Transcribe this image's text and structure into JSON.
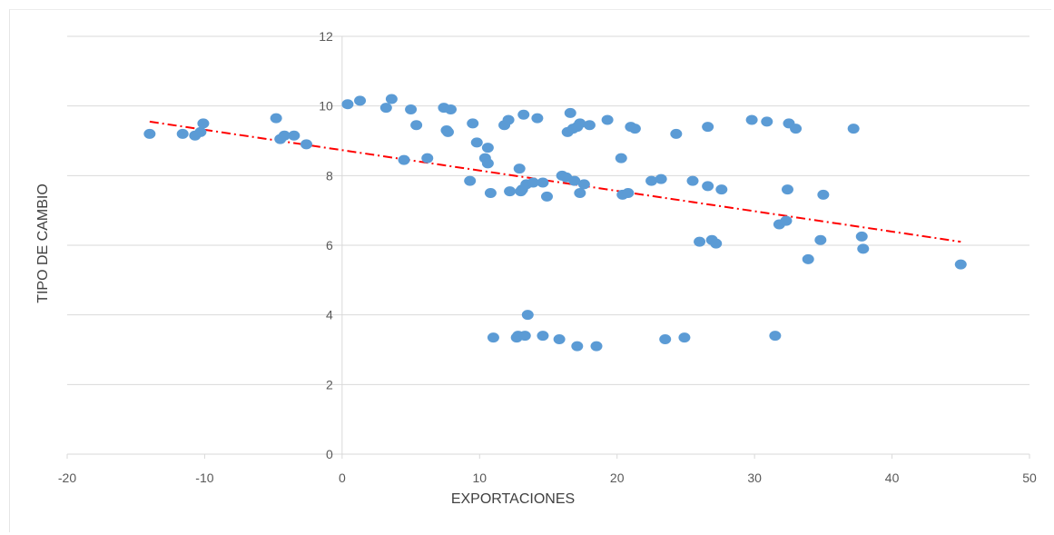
{
  "chart_data": {
    "type": "scatter",
    "xlabel": "EXPORTACIONES",
    "ylabel": "TIPO DE CAMBIO",
    "xlim": [
      -20,
      50
    ],
    "ylim": [
      0,
      12
    ],
    "xticks": [
      -20,
      -10,
      0,
      10,
      20,
      30,
      40,
      50
    ],
    "yticks": [
      0,
      2,
      4,
      6,
      8,
      10,
      12
    ],
    "grid": "horizontal",
    "marker_color": "#5B9BD5",
    "trendline": {
      "style": "dash-dot",
      "color": "#FF0000",
      "x": [
        -14,
        45
      ],
      "y": [
        9.55,
        6.1
      ]
    },
    "points": [
      [
        -14,
        9.2
      ],
      [
        -11.6,
        9.2
      ],
      [
        -10.7,
        9.15
      ],
      [
        -10.3,
        9.25
      ],
      [
        -10.1,
        9.5
      ],
      [
        -4.8,
        9.65
      ],
      [
        -4.5,
        9.05
      ],
      [
        -4.2,
        9.15
      ],
      [
        -3.5,
        9.15
      ],
      [
        -2.6,
        8.9
      ],
      [
        0.4,
        10.05
      ],
      [
        1.3,
        10.15
      ],
      [
        3.2,
        9.95
      ],
      [
        3.6,
        10.2
      ],
      [
        4.5,
        8.45
      ],
      [
        5.0,
        9.9
      ],
      [
        5.4,
        9.45
      ],
      [
        6.2,
        8.5
      ],
      [
        7.4,
        9.95
      ],
      [
        7.6,
        9.3
      ],
      [
        7.7,
        9.25
      ],
      [
        7.9,
        9.9
      ],
      [
        9.3,
        7.85
      ],
      [
        9.5,
        9.5
      ],
      [
        9.8,
        8.95
      ],
      [
        10.4,
        8.5
      ],
      [
        10.6,
        8.8
      ],
      [
        10.6,
        8.35
      ],
      [
        10.8,
        7.5
      ],
      [
        11.0,
        3.35
      ],
      [
        11.8,
        9.45
      ],
      [
        12.1,
        9.6
      ],
      [
        12.2,
        7.55
      ],
      [
        12.7,
        3.35
      ],
      [
        12.8,
        3.4
      ],
      [
        12.9,
        8.2
      ],
      [
        13.0,
        7.55
      ],
      [
        13.1,
        7.6
      ],
      [
        13.2,
        9.75
      ],
      [
        13.3,
        3.4
      ],
      [
        13.4,
        7.75
      ],
      [
        13.5,
        4.0
      ],
      [
        13.9,
        7.8
      ],
      [
        14.2,
        9.65
      ],
      [
        14.6,
        7.8
      ],
      [
        14.6,
        3.4
      ],
      [
        14.9,
        7.4
      ],
      [
        15.8,
        3.3
      ],
      [
        16.0,
        8.0
      ],
      [
        16.3,
        7.95
      ],
      [
        16.4,
        9.25
      ],
      [
        16.6,
        9.8
      ],
      [
        16.8,
        9.35
      ],
      [
        16.9,
        7.85
      ],
      [
        17.1,
        3.1
      ],
      [
        17.1,
        9.4
      ],
      [
        17.3,
        9.5
      ],
      [
        17.3,
        7.5
      ],
      [
        17.6,
        7.75
      ],
      [
        18.0,
        9.45
      ],
      [
        18.5,
        3.1
      ],
      [
        19.3,
        9.6
      ],
      [
        20.3,
        8.5
      ],
      [
        20.4,
        7.45
      ],
      [
        20.8,
        7.5
      ],
      [
        21.0,
        9.4
      ],
      [
        21.3,
        9.35
      ],
      [
        22.5,
        7.85
      ],
      [
        23.2,
        7.9
      ],
      [
        23.5,
        3.3
      ],
      [
        24.3,
        9.2
      ],
      [
        24.9,
        3.35
      ],
      [
        25.5,
        7.85
      ],
      [
        26.0,
        6.1
      ],
      [
        26.6,
        9.4
      ],
      [
        26.6,
        7.7
      ],
      [
        26.9,
        6.15
      ],
      [
        27.2,
        6.05
      ],
      [
        27.6,
        7.6
      ],
      [
        29.8,
        9.6
      ],
      [
        30.9,
        9.55
      ],
      [
        31.5,
        3.4
      ],
      [
        31.8,
        6.6
      ],
      [
        32.3,
        6.7
      ],
      [
        32.4,
        7.6
      ],
      [
        32.5,
        9.5
      ],
      [
        33.0,
        9.35
      ],
      [
        33.9,
        5.6
      ],
      [
        34.8,
        6.15
      ],
      [
        35.0,
        7.45
      ],
      [
        37.2,
        9.35
      ],
      [
        37.8,
        6.25
      ],
      [
        37.9,
        5.9
      ],
      [
        45.0,
        5.45
      ]
    ]
  }
}
